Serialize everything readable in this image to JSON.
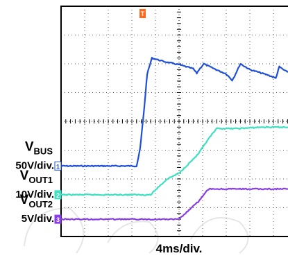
{
  "chart_data": {
    "type": "line",
    "timebase": "4ms/div.",
    "time_divisions": 10,
    "vertical_divisions": 8,
    "grid": true,
    "trigger_marker": "T",
    "series": [
      {
        "name": "VBUS",
        "label_main": "V",
        "label_sub": "BUS",
        "scale": "50V/div.",
        "marker": "1",
        "color": "#1f4fd8",
        "baseline_div": 2.45,
        "points": [
          [
            0,
            0
          ],
          [
            3.2,
            0
          ],
          [
            3.35,
            0.6
          ],
          [
            3.5,
            1.8
          ],
          [
            3.65,
            3.2
          ],
          [
            3.85,
            3.75
          ],
          [
            4.4,
            3.62
          ],
          [
            5.0,
            3.52
          ],
          [
            5.6,
            3.38
          ],
          [
            5.75,
            3.22
          ],
          [
            5.85,
            3.35
          ],
          [
            6.05,
            3.55
          ],
          [
            6.3,
            3.45
          ],
          [
            6.7,
            3.3
          ],
          [
            7.0,
            3.2
          ],
          [
            7.25,
            2.98
          ],
          [
            7.35,
            3.12
          ],
          [
            7.6,
            3.55
          ],
          [
            8.0,
            3.35
          ],
          [
            8.8,
            3.15
          ],
          [
            9.1,
            3.05
          ],
          [
            9.25,
            3.45
          ],
          [
            9.5,
            3.3
          ],
          [
            10.0,
            3.2
          ]
        ]
      },
      {
        "name": "VOUT1",
        "label_main": "V",
        "label_sub": "OUT1",
        "scale": "10V/div.",
        "marker": "2",
        "color": "#3ee0c0",
        "baseline_div": 1.45,
        "points": [
          [
            0,
            0
          ],
          [
            3.8,
            0
          ],
          [
            4.1,
            0.25
          ],
          [
            4.5,
            0.55
          ],
          [
            5.0,
            0.75
          ],
          [
            5.8,
            1.4
          ],
          [
            6.3,
            2.0
          ],
          [
            6.6,
            2.3
          ],
          [
            7.5,
            2.3
          ],
          [
            8.5,
            2.35
          ],
          [
            10.0,
            2.35
          ]
        ]
      },
      {
        "name": "VOUT2",
        "label_main": "V",
        "label_sub": "OUT2",
        "scale": "5V/div.",
        "marker": "3",
        "color": "#8a3ee6",
        "baseline_div": 0.6,
        "points": [
          [
            0,
            0
          ],
          [
            5.0,
            0
          ],
          [
            5.2,
            0.15
          ],
          [
            5.8,
            0.6
          ],
          [
            6.2,
            1.0
          ],
          [
            6.3,
            1.05
          ],
          [
            8.0,
            1.05
          ],
          [
            10.0,
            1.05
          ]
        ]
      }
    ]
  }
}
